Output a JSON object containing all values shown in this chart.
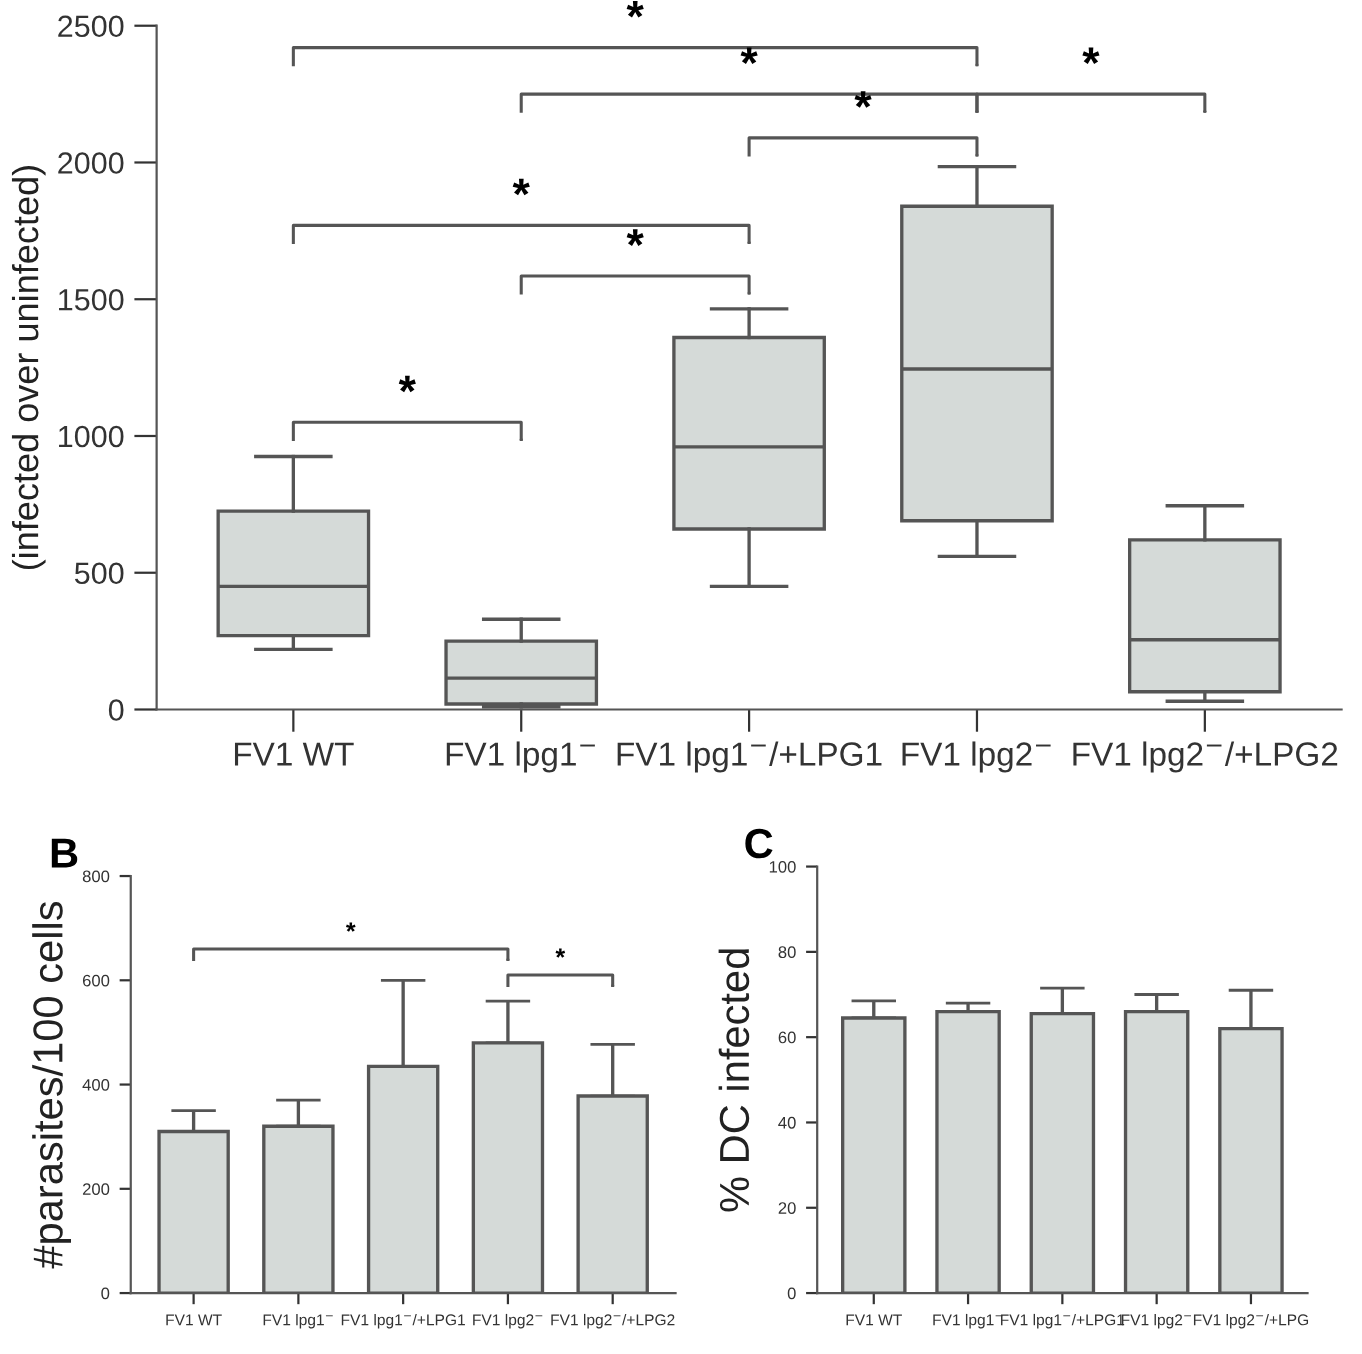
{
  "chart_data": [
    {
      "type": "box",
      "ylabel": "(infected over uninfected)",
      "categories": [
        "FV1 WT",
        "FV1 lpg1$^{−}$",
        "FV1 lpg1$^{−}$/+LPG1",
        "FV1 lpg2$^{−}$",
        "FV1 lpg2$^{−}$/+LPG2"
      ],
      "boxes": [
        {
          "low": 220,
          "q1": 270,
          "median": 450,
          "q3": 725,
          "high": 925
        },
        {
          "low": 10,
          "q1": 20,
          "median": 115,
          "q3": 250,
          "high": 330
        },
        {
          "low": 450,
          "q1": 660,
          "median": 960,
          "q3": 1360,
          "high": 1465
        },
        {
          "low": 560,
          "q1": 690,
          "median": 1245,
          "q3": 1840,
          "high": 1985
        },
        {
          "low": 30,
          "q1": 65,
          "median": 255,
          "q3": 620,
          "high": 745
        }
      ],
      "color": "#d5dad8",
      "ylim": [
        0,
        2500
      ],
      "yticks": [
        0,
        500,
        1000,
        1500,
        2000,
        2500
      ],
      "grid": false,
      "annotations": [
        "*",
        "*",
        "*",
        "*",
        "*",
        "*",
        "*"
      ]
    },
    {
      "type": "bar",
      "title": "B",
      "ylabel": "#parasites/100 cells",
      "categories": [
        "FV1 WT",
        "FV1 lpg1$^{−}$",
        "FV1 lpg1$^{−}$/+LPG1",
        "FV1 lpg2$^{−}$",
        "FV1 lpg2$^{−}$/+LPG2"
      ],
      "values": [
        310,
        320,
        435,
        480,
        378
      ],
      "color": "#d5dad8",
      "errors": [
        [
          310,
          350
        ],
        [
          320,
          370
        ],
        [
          435,
          600
        ],
        [
          480,
          560
        ],
        [
          378,
          477
        ]
      ],
      "ylim": [
        0,
        800
      ],
      "yticks": [
        0,
        200,
        400,
        600,
        800
      ],
      "grid": false,
      "annotations": [
        "*",
        "*"
      ]
    },
    {
      "type": "bar",
      "title": "C",
      "ylabel": "% DC infected",
      "categories": [
        "FV1 WT",
        "FV1 lpg1$^{−}$",
        "FV1 lpg1$^{−}$/+LPG1",
        "FV1 lpg2$^{−}$",
        "FV1 lpg2$^{−}$/+LPG"
      ],
      "values": [
        64.5,
        66,
        65.5,
        66,
        62
      ],
      "color": "#d5dad8",
      "errors": [
        [
          64.5,
          68.5
        ],
        [
          66,
          68
        ],
        [
          65.5,
          71.5
        ],
        [
          66,
          70
        ],
        [
          62,
          71
        ]
      ],
      "ylim": [
        0,
        100
      ],
      "yticks": [
        0,
        20,
        40,
        60,
        80,
        100
      ],
      "grid": false
    }
  ]
}
